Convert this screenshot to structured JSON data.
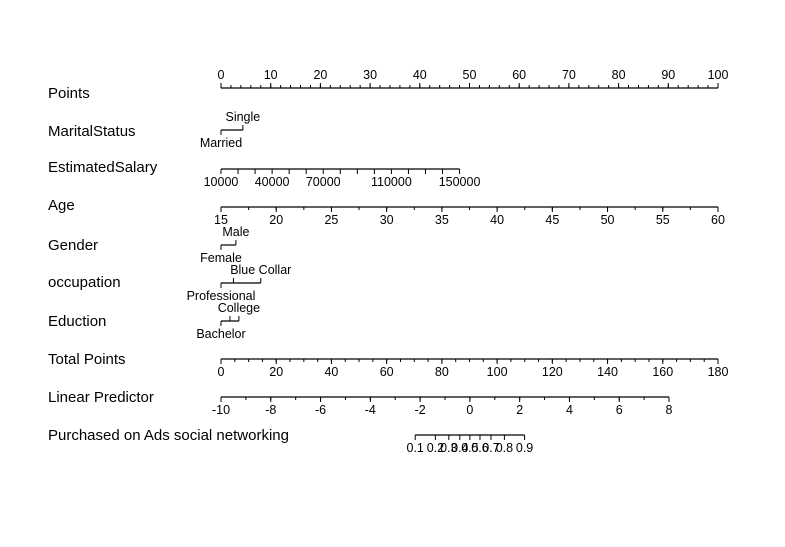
{
  "chart_data": {
    "type": "nomogram",
    "title": "",
    "xlabel": "",
    "ylabel": "",
    "rows": [
      {
        "label": "Points",
        "labels_position": "above",
        "axis_range": [
          0,
          100
        ],
        "ticks": [
          {
            "v": 0,
            "t": "0"
          },
          {
            "v": 10,
            "t": "10"
          },
          {
            "v": 20,
            "t": "20"
          },
          {
            "v": 30,
            "t": "30"
          },
          {
            "v": 40,
            "t": "40"
          },
          {
            "v": 50,
            "t": "50"
          },
          {
            "v": 60,
            "t": "60"
          },
          {
            "v": 70,
            "t": "70"
          },
          {
            "v": 80,
            "t": "80"
          },
          {
            "v": 90,
            "t": "90"
          },
          {
            "v": 100,
            "t": "100"
          }
        ],
        "minor_step": 2
      },
      {
        "label": "MaritalStatus",
        "axis_range": [
          0,
          4.4
        ],
        "ticks": [
          {
            "v": 0,
            "t": "Married",
            "pos": "below"
          },
          {
            "v": 4.4,
            "t": "Single",
            "pos": "above"
          }
        ]
      },
      {
        "label": "EstimatedSalary",
        "labels_position": "below",
        "axis_range": [
          10000,
          150000
        ],
        "points_range": [
          0,
          48
        ],
        "ticks": [
          {
            "v": 10000,
            "t": "10000"
          },
          {
            "v": 20000,
            "t": ""
          },
          {
            "v": 30000,
            "t": ""
          },
          {
            "v": 40000,
            "t": "40000"
          },
          {
            "v": 50000,
            "t": ""
          },
          {
            "v": 60000,
            "t": ""
          },
          {
            "v": 70000,
            "t": "70000"
          },
          {
            "v": 80000,
            "t": ""
          },
          {
            "v": 90000,
            "t": ""
          },
          {
            "v": 100000,
            "t": ""
          },
          {
            "v": 110000,
            "t": "110000"
          },
          {
            "v": 120000,
            "t": ""
          },
          {
            "v": 130000,
            "t": ""
          },
          {
            "v": 140000,
            "t": ""
          },
          {
            "v": 150000,
            "t": "150000"
          }
        ]
      },
      {
        "label": "Age",
        "labels_position": "below",
        "axis_range": [
          15,
          60
        ],
        "points_range": [
          0,
          100
        ],
        "ticks": [
          {
            "v": 15,
            "t": "15"
          },
          {
            "v": 20,
            "t": "20"
          },
          {
            "v": 25,
            "t": "25"
          },
          {
            "v": 30,
            "t": "30"
          },
          {
            "v": 35,
            "t": "35"
          },
          {
            "v": 40,
            "t": "40"
          },
          {
            "v": 45,
            "t": "45"
          },
          {
            "v": 50,
            "t": "50"
          },
          {
            "v": 55,
            "t": "55"
          },
          {
            "v": 60,
            "t": "60"
          }
        ],
        "minor_step": 2.5
      },
      {
        "label": "Gender",
        "axis_range": [
          0,
          3
        ],
        "ticks": [
          {
            "v": 0,
            "t": "Female",
            "pos": "below"
          },
          {
            "v": 3,
            "t": "Male",
            "pos": "above"
          }
        ]
      },
      {
        "label": "occupation",
        "axis_range": [
          0,
          8
        ],
        "ticks": [
          {
            "v": 0,
            "t": "Professional",
            "pos": "below"
          },
          {
            "v": 2.5,
            "t": "",
            "pos": "above"
          },
          {
            "v": 8,
            "t": "Blue Collar",
            "pos": "above"
          }
        ]
      },
      {
        "label": "Eduction",
        "axis_range": [
          0,
          3.6
        ],
        "ticks": [
          {
            "v": 0,
            "t": "Bachelor",
            "pos": "below"
          },
          {
            "v": 1.8,
            "t": "",
            "pos": "above"
          },
          {
            "v": 3.6,
            "t": "College",
            "pos": "above"
          }
        ]
      },
      {
        "label": "Total Points",
        "labels_position": "below",
        "axis_range": [
          0,
          180
        ],
        "ticks": [
          {
            "v": 0,
            "t": "0"
          },
          {
            "v": 20,
            "t": "20"
          },
          {
            "v": 40,
            "t": "40"
          },
          {
            "v": 60,
            "t": "60"
          },
          {
            "v": 80,
            "t": "80"
          },
          {
            "v": 100,
            "t": "100"
          },
          {
            "v": 120,
            "t": "120"
          },
          {
            "v": 140,
            "t": "140"
          },
          {
            "v": 160,
            "t": "160"
          },
          {
            "v": 180,
            "t": "180"
          }
        ],
        "minor_step": 5
      },
      {
        "label": "Linear Predictor",
        "labels_position": "below",
        "axis_range": [
          -10,
          8
        ],
        "ticks": [
          {
            "v": -10,
            "t": "-10"
          },
          {
            "v": -8,
            "t": "-8"
          },
          {
            "v": -6,
            "t": "-6"
          },
          {
            "v": -4,
            "t": "-4"
          },
          {
            "v": -2,
            "t": "-2"
          },
          {
            "v": 0,
            "t": "0"
          },
          {
            "v": 2,
            "t": "2"
          },
          {
            "v": 4,
            "t": "4"
          },
          {
            "v": 6,
            "t": "6"
          },
          {
            "v": 8,
            "t": "8"
          }
        ],
        "minor_step": 1
      },
      {
        "label": "Purchased on Ads social networking",
        "labels_position": "below",
        "scale": "logit",
        "axis_range": [
          0.1,
          0.9
        ],
        "ticks": [
          {
            "v": 0.1,
            "t": "0.1"
          },
          {
            "v": 0.2,
            "t": "0.2"
          },
          {
            "v": 0.3,
            "t": "0.3"
          },
          {
            "v": 0.4,
            "t": "0.4"
          },
          {
            "v": 0.5,
            "t": "0.5"
          },
          {
            "v": 0.6,
            "t": "0.6"
          },
          {
            "v": 0.7,
            "t": "0.7"
          },
          {
            "v": 0.8,
            "t": "0.8"
          },
          {
            "v": 0.9,
            "t": "0.9"
          }
        ]
      }
    ]
  }
}
